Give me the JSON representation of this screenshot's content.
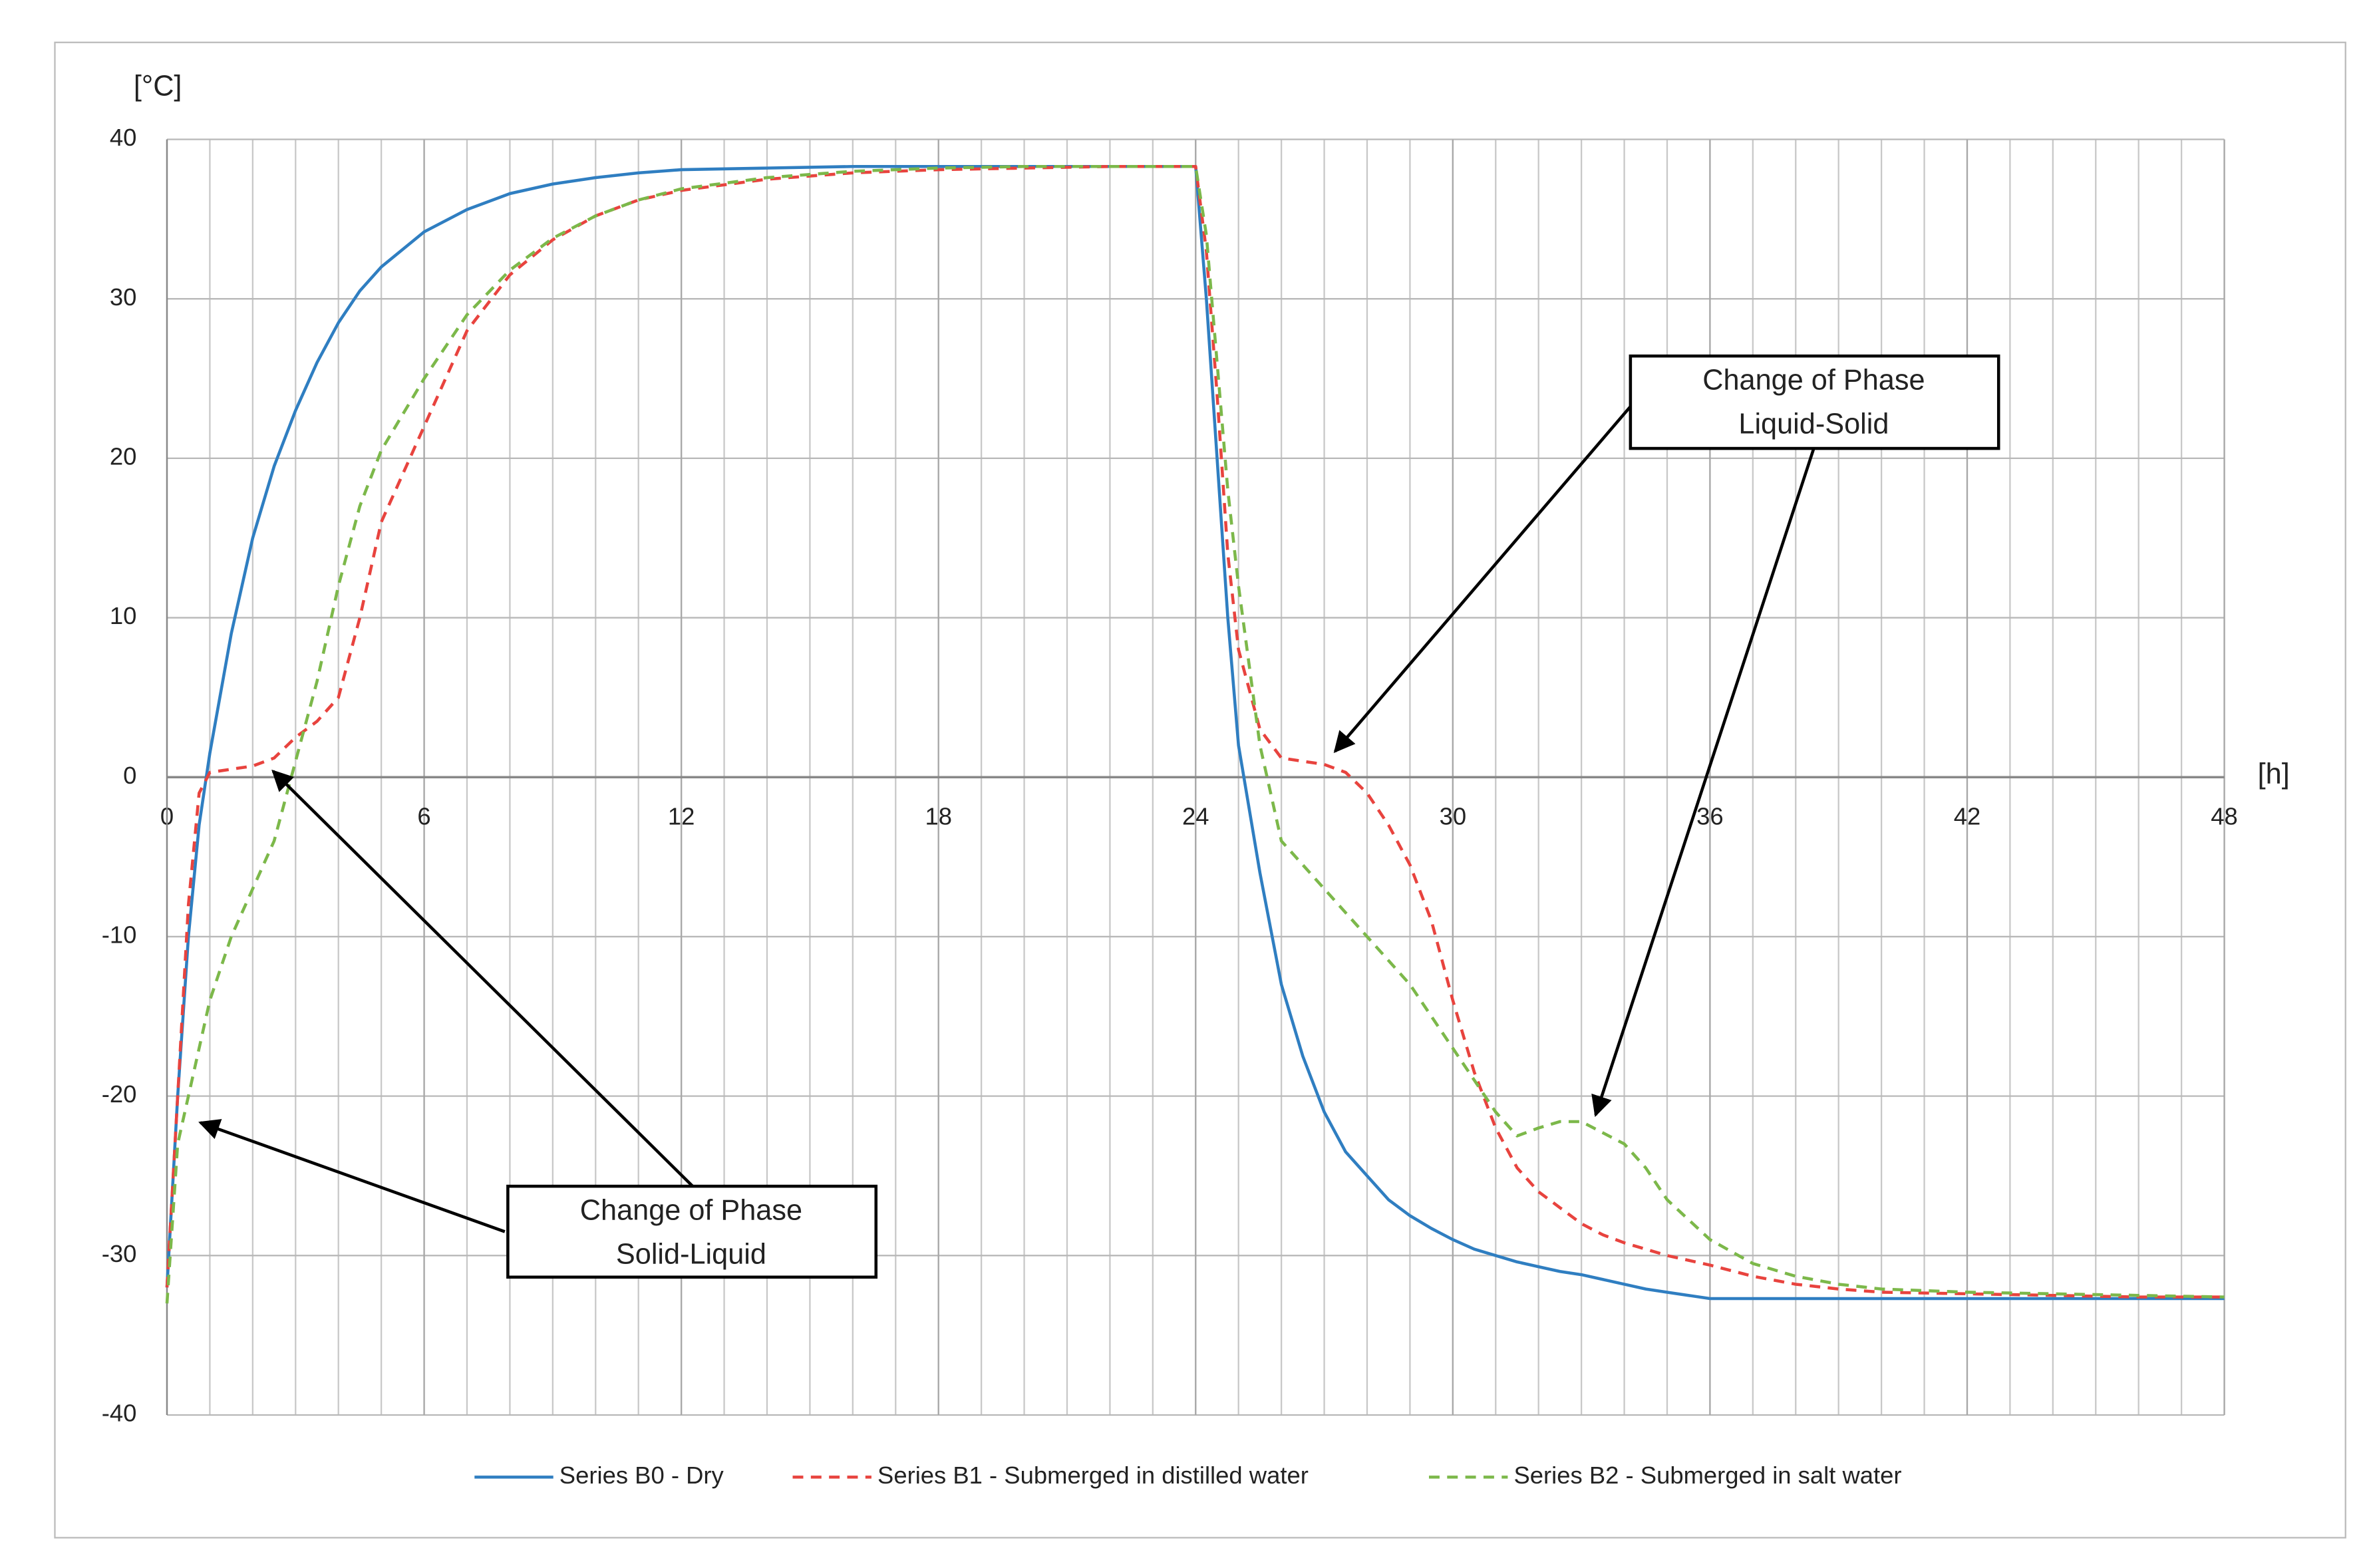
{
  "chart_data": {
    "type": "line",
    "x_label": "[h]",
    "y_label": "[°C]",
    "x": [
      0,
      0.25,
      0.5,
      0.75,
      1,
      1.5,
      2,
      2.5,
      3,
      3.5,
      4,
      4.5,
      5,
      6,
      7,
      8,
      9,
      10,
      11,
      12,
      14,
      16,
      18,
      20,
      22,
      24,
      24.25,
      24.5,
      24.75,
      25,
      25.5,
      26,
      26.5,
      27,
      27.5,
      28,
      28.5,
      29,
      29.5,
      30,
      30.5,
      31,
      31.5,
      32,
      32.5,
      33,
      33.5,
      34,
      34.5,
      35,
      36,
      37,
      38,
      39,
      40,
      42,
      44,
      46,
      48
    ],
    "series": [
      {
        "name": "Series B0 - Dry",
        "color": "#2f7ec1",
        "dashed": false,
        "values": [
          -32,
          -20,
          -10,
          -3,
          1.5,
          9,
          15,
          19.5,
          23,
          26,
          28.5,
          30.5,
          32,
          34.2,
          35.6,
          36.6,
          37.2,
          37.6,
          37.9,
          38.1,
          38.2,
          38.3,
          38.3,
          38.3,
          38.3,
          38.3,
          30,
          20,
          10,
          2,
          -6,
          -13,
          -17.5,
          -21,
          -23.5,
          -25,
          -26.5,
          -27.5,
          -28.3,
          -29,
          -29.6,
          -30,
          -30.4,
          -30.7,
          -31,
          -31.2,
          -31.5,
          -31.8,
          -32.1,
          -32.3,
          -32.7,
          -32.7,
          -32.7,
          -32.7,
          -32.7,
          -32.7,
          -32.7,
          -32.7,
          -32.7
        ]
      },
      {
        "name": "Series B1 - Submerged in distilled water",
        "color": "#e8433e",
        "dashed": true,
        "values": [
          -32,
          -20,
          -8,
          -1,
          0.3,
          0.5,
          0.7,
          1.2,
          2.5,
          3.5,
          5,
          10,
          16,
          22,
          28,
          31.5,
          33.7,
          35.2,
          36.2,
          36.8,
          37.5,
          37.9,
          38.1,
          38.2,
          38.3,
          38.3,
          33,
          24,
          14,
          8,
          3,
          1.2,
          1,
          0.8,
          0.3,
          -1,
          -3,
          -5.5,
          -9,
          -14,
          -18.5,
          -22,
          -24.5,
          -26,
          -27,
          -28,
          -28.7,
          -29.2,
          -29.6,
          -30,
          -30.6,
          -31.3,
          -31.8,
          -32.1,
          -32.3,
          -32.4,
          -32.5,
          -32.6,
          -32.6
        ]
      },
      {
        "name": "Series B2 - Submerged in salt water",
        "color": "#7cb84a",
        "dashed": true,
        "values": [
          -33,
          -23,
          -20,
          -17,
          -14,
          -10,
          -7,
          -4,
          1,
          6,
          12,
          17,
          20.5,
          25,
          29,
          31.8,
          33.8,
          35.2,
          36.2,
          36.9,
          37.6,
          38,
          38.2,
          38.3,
          38.3,
          38.3,
          34,
          26,
          18,
          12,
          2,
          -4,
          -5.5,
          -7,
          -8.5,
          -10,
          -11.5,
          -13,
          -15,
          -17,
          -19,
          -21,
          -22.5,
          -22,
          -21.6,
          -21.6,
          -22.3,
          -23,
          -24.5,
          -26.5,
          -29,
          -30.5,
          -31.3,
          -31.8,
          -32.1,
          -32.3,
          -32.4,
          -32.5,
          -32.6
        ]
      }
    ],
    "xlim": [
      0,
      48
    ],
    "xticks": [
      0,
      6,
      12,
      18,
      24,
      30,
      36,
      42,
      48
    ],
    "x_minor_step": 1,
    "ylim": [
      -40,
      40
    ],
    "yticks": [
      -40,
      -30,
      -20,
      -10,
      0,
      10,
      20,
      30,
      40
    ],
    "grid": true,
    "legend": "bottom",
    "annotations": [
      {
        "lines": [
          "Change of Phase",
          "Solid-Liquid"
        ]
      },
      {
        "lines": [
          "Change of Phase",
          "Liquid-Solid"
        ]
      }
    ]
  }
}
